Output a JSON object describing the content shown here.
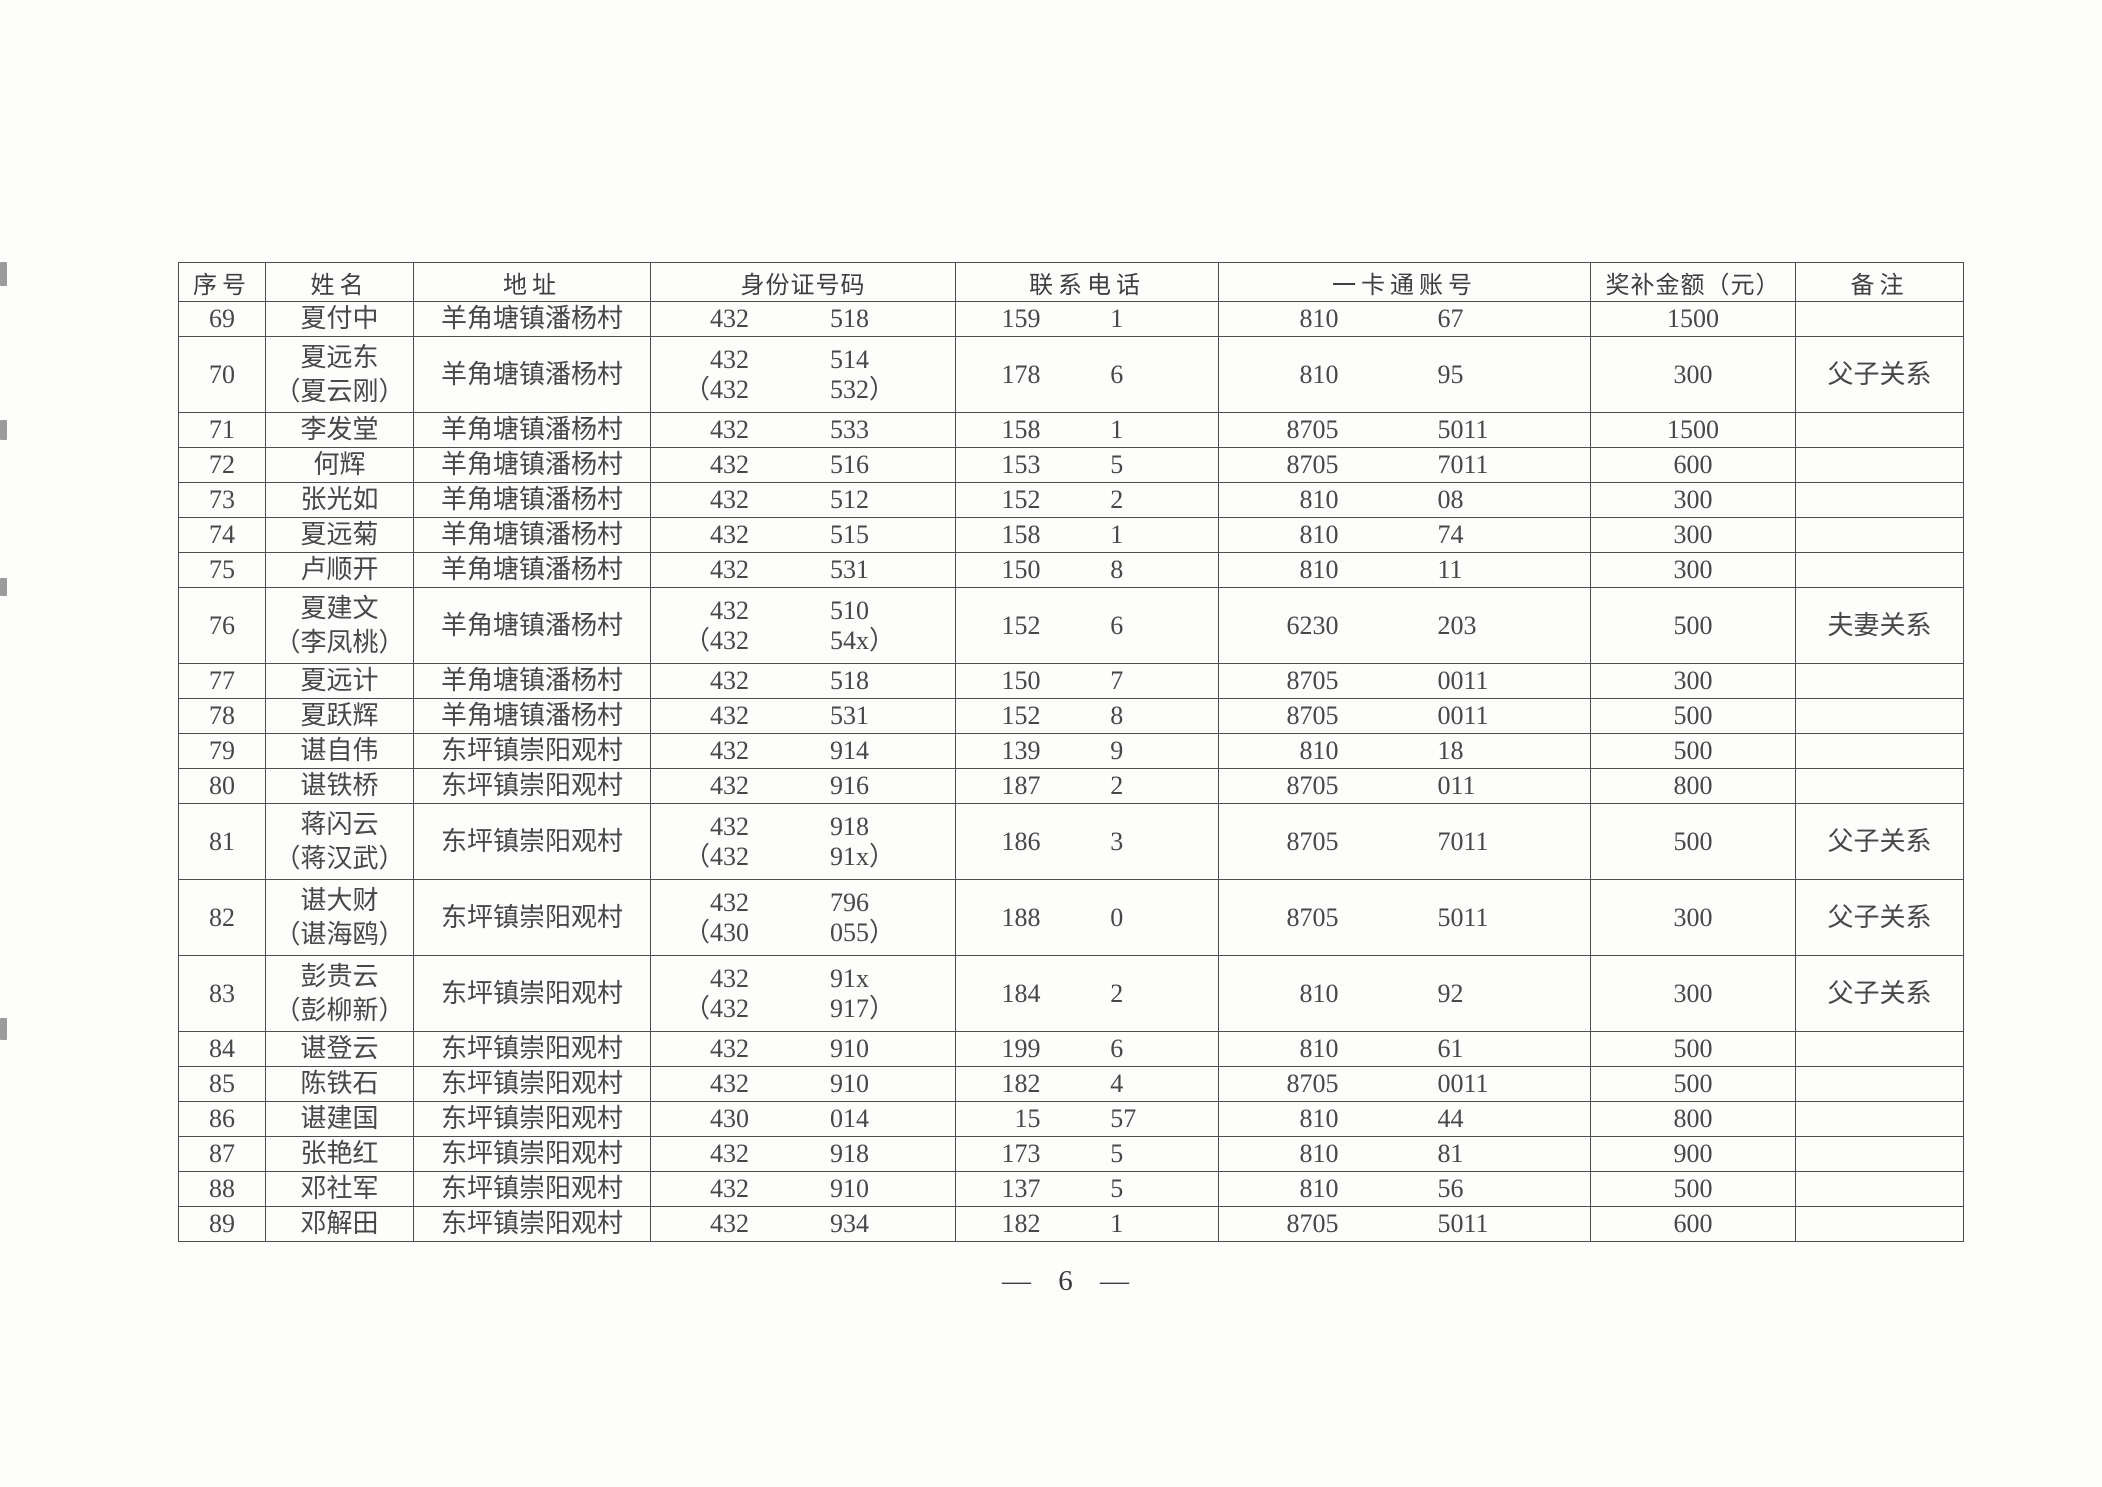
{
  "page": {
    "number_label": "— 6 —"
  },
  "table": {
    "headers": [
      "序号",
      "姓名",
      "地址",
      "身份证号码",
      "联系电话",
      "一卡通账号",
      "奖补金额（元）",
      "备注"
    ],
    "rows": [
      {
        "no": "69",
        "name": [
          "夏付中"
        ],
        "address": "羊角塘镇潘杨村",
        "id": [
          [
            "432",
            "518"
          ]
        ],
        "phone": [
          "159",
          "1"
        ],
        "account": [
          "810",
          "67"
        ],
        "amount": "1500",
        "remark": ""
      },
      {
        "no": "70",
        "name": [
          "夏远东",
          "（夏云刚）"
        ],
        "address": "羊角塘镇潘杨村",
        "id": [
          [
            "432",
            "514"
          ],
          [
            "（432",
            "532）"
          ]
        ],
        "phone": [
          "178",
          "6"
        ],
        "account": [
          "810",
          "95"
        ],
        "amount": "300",
        "remark": "父子关系"
      },
      {
        "no": "71",
        "name": [
          "李发堂"
        ],
        "address": "羊角塘镇潘杨村",
        "id": [
          [
            "432",
            "533"
          ]
        ],
        "phone": [
          "158",
          "1"
        ],
        "account": [
          "8705",
          "5011"
        ],
        "amount": "1500",
        "remark": ""
      },
      {
        "no": "72",
        "name": [
          "何辉"
        ],
        "address": "羊角塘镇潘杨村",
        "id": [
          [
            "432",
            "516"
          ]
        ],
        "phone": [
          "153",
          "5"
        ],
        "account": [
          "8705",
          "7011"
        ],
        "amount": "600",
        "remark": ""
      },
      {
        "no": "73",
        "name": [
          "张光如"
        ],
        "address": "羊角塘镇潘杨村",
        "id": [
          [
            "432",
            "512"
          ]
        ],
        "phone": [
          "152",
          "2"
        ],
        "account": [
          "810",
          "08"
        ],
        "amount": "300",
        "remark": ""
      },
      {
        "no": "74",
        "name": [
          "夏远菊"
        ],
        "address": "羊角塘镇潘杨村",
        "id": [
          [
            "432",
            "515"
          ]
        ],
        "phone": [
          "158",
          "1"
        ],
        "account": [
          "810",
          "74"
        ],
        "amount": "300",
        "remark": ""
      },
      {
        "no": "75",
        "name": [
          "卢顺开"
        ],
        "address": "羊角塘镇潘杨村",
        "id": [
          [
            "432",
            "531"
          ]
        ],
        "phone": [
          "150",
          "8"
        ],
        "account": [
          "810",
          "11"
        ],
        "amount": "300",
        "remark": ""
      },
      {
        "no": "76",
        "name": [
          "夏建文",
          "（李凤桃）"
        ],
        "address": "羊角塘镇潘杨村",
        "id": [
          [
            "432",
            "510"
          ],
          [
            "（432",
            "54x）"
          ]
        ],
        "phone": [
          "152",
          "6"
        ],
        "account": [
          "6230",
          "203"
        ],
        "amount": "500",
        "remark": "夫妻关系"
      },
      {
        "no": "77",
        "name": [
          "夏远计"
        ],
        "address": "羊角塘镇潘杨村",
        "id": [
          [
            "432",
            "518"
          ]
        ],
        "phone": [
          "150",
          "7"
        ],
        "account": [
          "8705",
          "0011"
        ],
        "amount": "300",
        "remark": ""
      },
      {
        "no": "78",
        "name": [
          "夏跃辉"
        ],
        "address": "羊角塘镇潘杨村",
        "id": [
          [
            "432",
            "531"
          ]
        ],
        "phone": [
          "152",
          "8"
        ],
        "account": [
          "8705",
          "0011"
        ],
        "amount": "500",
        "remark": ""
      },
      {
        "no": "79",
        "name": [
          "谌自伟"
        ],
        "address": "东坪镇崇阳观村",
        "id": [
          [
            "432",
            "914"
          ]
        ],
        "phone": [
          "139",
          "9"
        ],
        "account": [
          "810",
          "18"
        ],
        "amount": "500",
        "remark": ""
      },
      {
        "no": "80",
        "name": [
          "谌铁桥"
        ],
        "address": "东坪镇崇阳观村",
        "id": [
          [
            "432",
            "916"
          ]
        ],
        "phone": [
          "187",
          "2"
        ],
        "account": [
          "8705",
          "011"
        ],
        "amount": "800",
        "remark": ""
      },
      {
        "no": "81",
        "name": [
          "蒋闪云",
          "（蒋汉武）"
        ],
        "address": "东坪镇崇阳观村",
        "id": [
          [
            "432",
            "918"
          ],
          [
            "（432",
            "91x）"
          ]
        ],
        "phone": [
          "186",
          "3"
        ],
        "account": [
          "8705",
          "7011"
        ],
        "amount": "500",
        "remark": "父子关系"
      },
      {
        "no": "82",
        "name": [
          "谌大财",
          "（谌海鸥）"
        ],
        "address": "东坪镇崇阳观村",
        "id": [
          [
            "432",
            "796"
          ],
          [
            "（430",
            "055）"
          ]
        ],
        "phone": [
          "188",
          "0"
        ],
        "account": [
          "8705",
          "5011"
        ],
        "amount": "300",
        "remark": "父子关系"
      },
      {
        "no": "83",
        "name": [
          "彭贵云",
          "（彭柳新）"
        ],
        "address": "东坪镇崇阳观村",
        "id": [
          [
            "432",
            "91x"
          ],
          [
            "（432",
            "917）"
          ]
        ],
        "phone": [
          "184",
          "2"
        ],
        "account": [
          "810",
          "92"
        ],
        "amount": "300",
        "remark": "父子关系"
      },
      {
        "no": "84",
        "name": [
          "谌登云"
        ],
        "address": "东坪镇崇阳观村",
        "id": [
          [
            "432",
            "910"
          ]
        ],
        "phone": [
          "199",
          "6"
        ],
        "account": [
          "810",
          "61"
        ],
        "amount": "500",
        "remark": ""
      },
      {
        "no": "85",
        "name": [
          "陈铁石"
        ],
        "address": "东坪镇崇阳观村",
        "id": [
          [
            "432",
            "910"
          ]
        ],
        "phone": [
          "182",
          "4"
        ],
        "account": [
          "8705",
          "0011"
        ],
        "amount": "500",
        "remark": ""
      },
      {
        "no": "86",
        "name": [
          "谌建国"
        ],
        "address": "东坪镇崇阳观村",
        "id": [
          [
            "430",
            "014"
          ]
        ],
        "phone": [
          "15",
          "57"
        ],
        "account": [
          "810",
          "44"
        ],
        "amount": "800",
        "remark": ""
      },
      {
        "no": "87",
        "name": [
          "张艳红"
        ],
        "address": "东坪镇崇阳观村",
        "id": [
          [
            "432",
            "918"
          ]
        ],
        "phone": [
          "173",
          "5"
        ],
        "account": [
          "810",
          "81"
        ],
        "amount": "900",
        "remark": ""
      },
      {
        "no": "88",
        "name": [
          "邓社军"
        ],
        "address": "东坪镇崇阳观村",
        "id": [
          [
            "432",
            "910"
          ]
        ],
        "phone": [
          "137",
          "5"
        ],
        "account": [
          "810",
          "56"
        ],
        "amount": "500",
        "remark": ""
      },
      {
        "no": "89",
        "name": [
          "邓解田"
        ],
        "address": "东坪镇崇阳观村",
        "id": [
          [
            "432",
            "934"
          ]
        ],
        "phone": [
          "182",
          "1"
        ],
        "account": [
          "8705",
          "5011"
        ],
        "amount": "600",
        "remark": ""
      }
    ]
  }
}
